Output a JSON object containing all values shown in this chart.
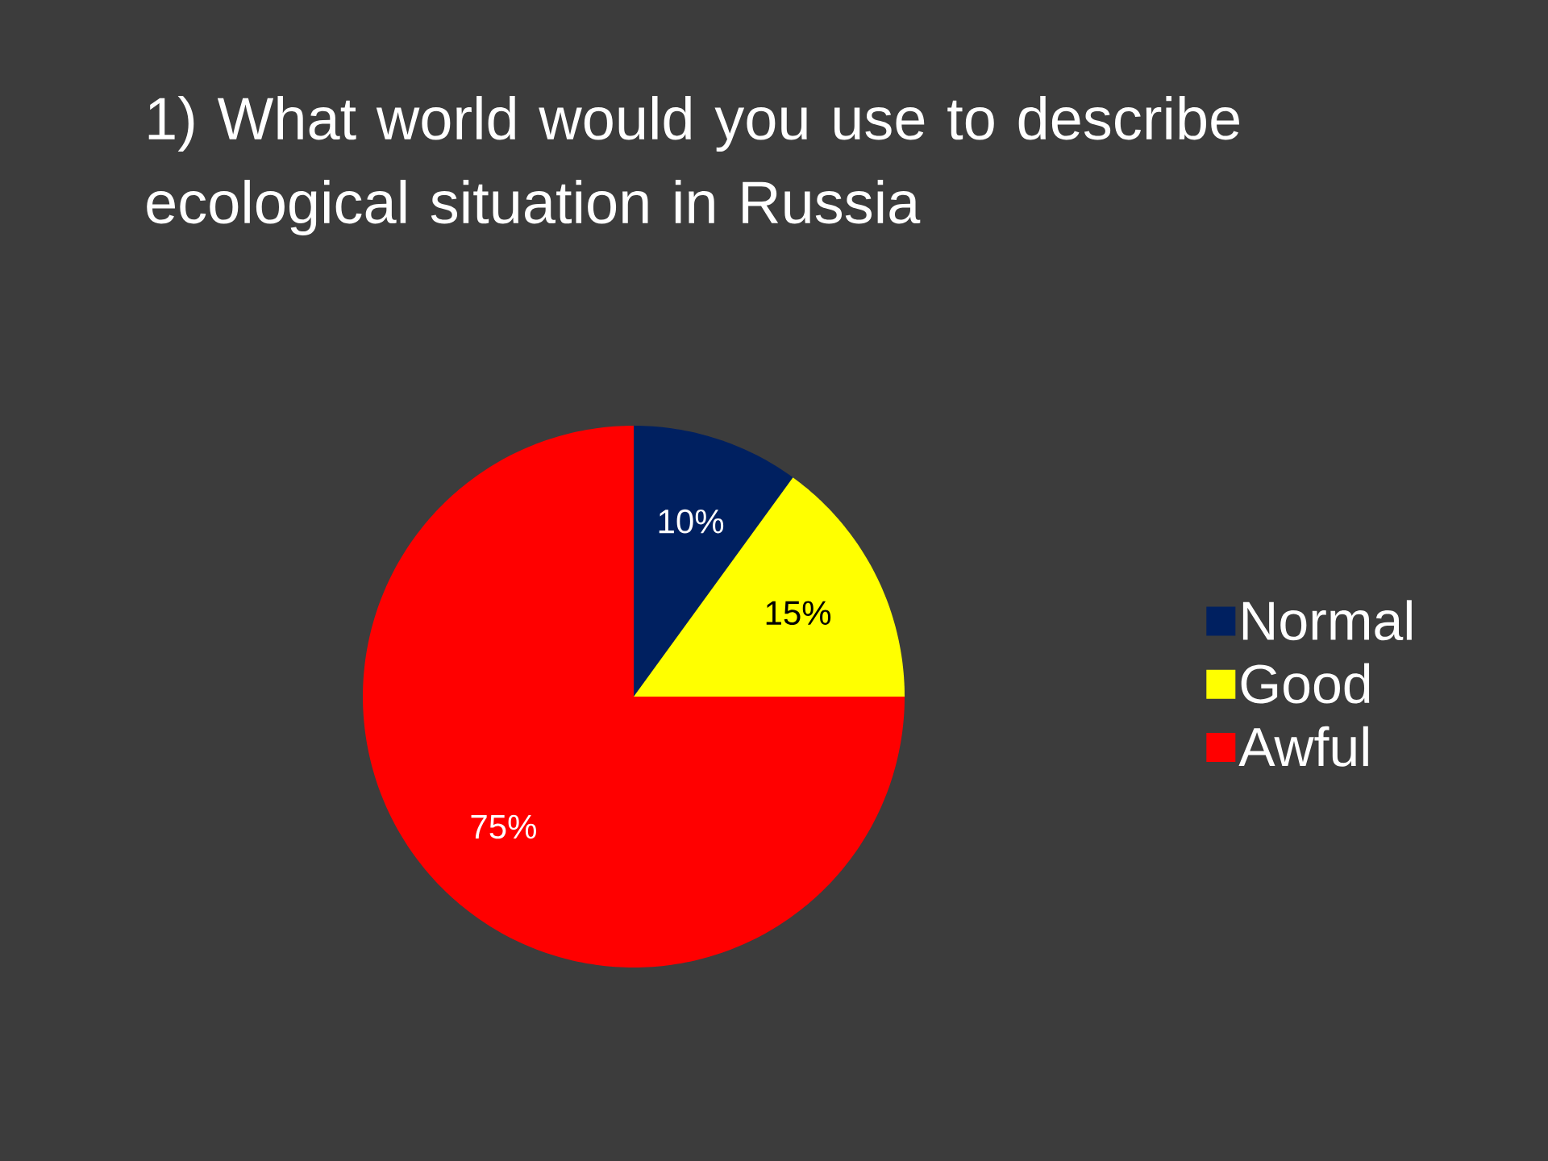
{
  "chart_data": {
    "type": "pie",
    "title": "1) What world would you use to describe ecological situation in Russia",
    "categories": [
      "Normal",
      "Good",
      "Awful"
    ],
    "values": [
      10,
      15,
      75
    ],
    "colors": [
      "#002060",
      "#ffff00",
      "#ff0000"
    ],
    "value_labels": [
      "10%",
      "15%",
      "75%"
    ],
    "legend": "right"
  }
}
